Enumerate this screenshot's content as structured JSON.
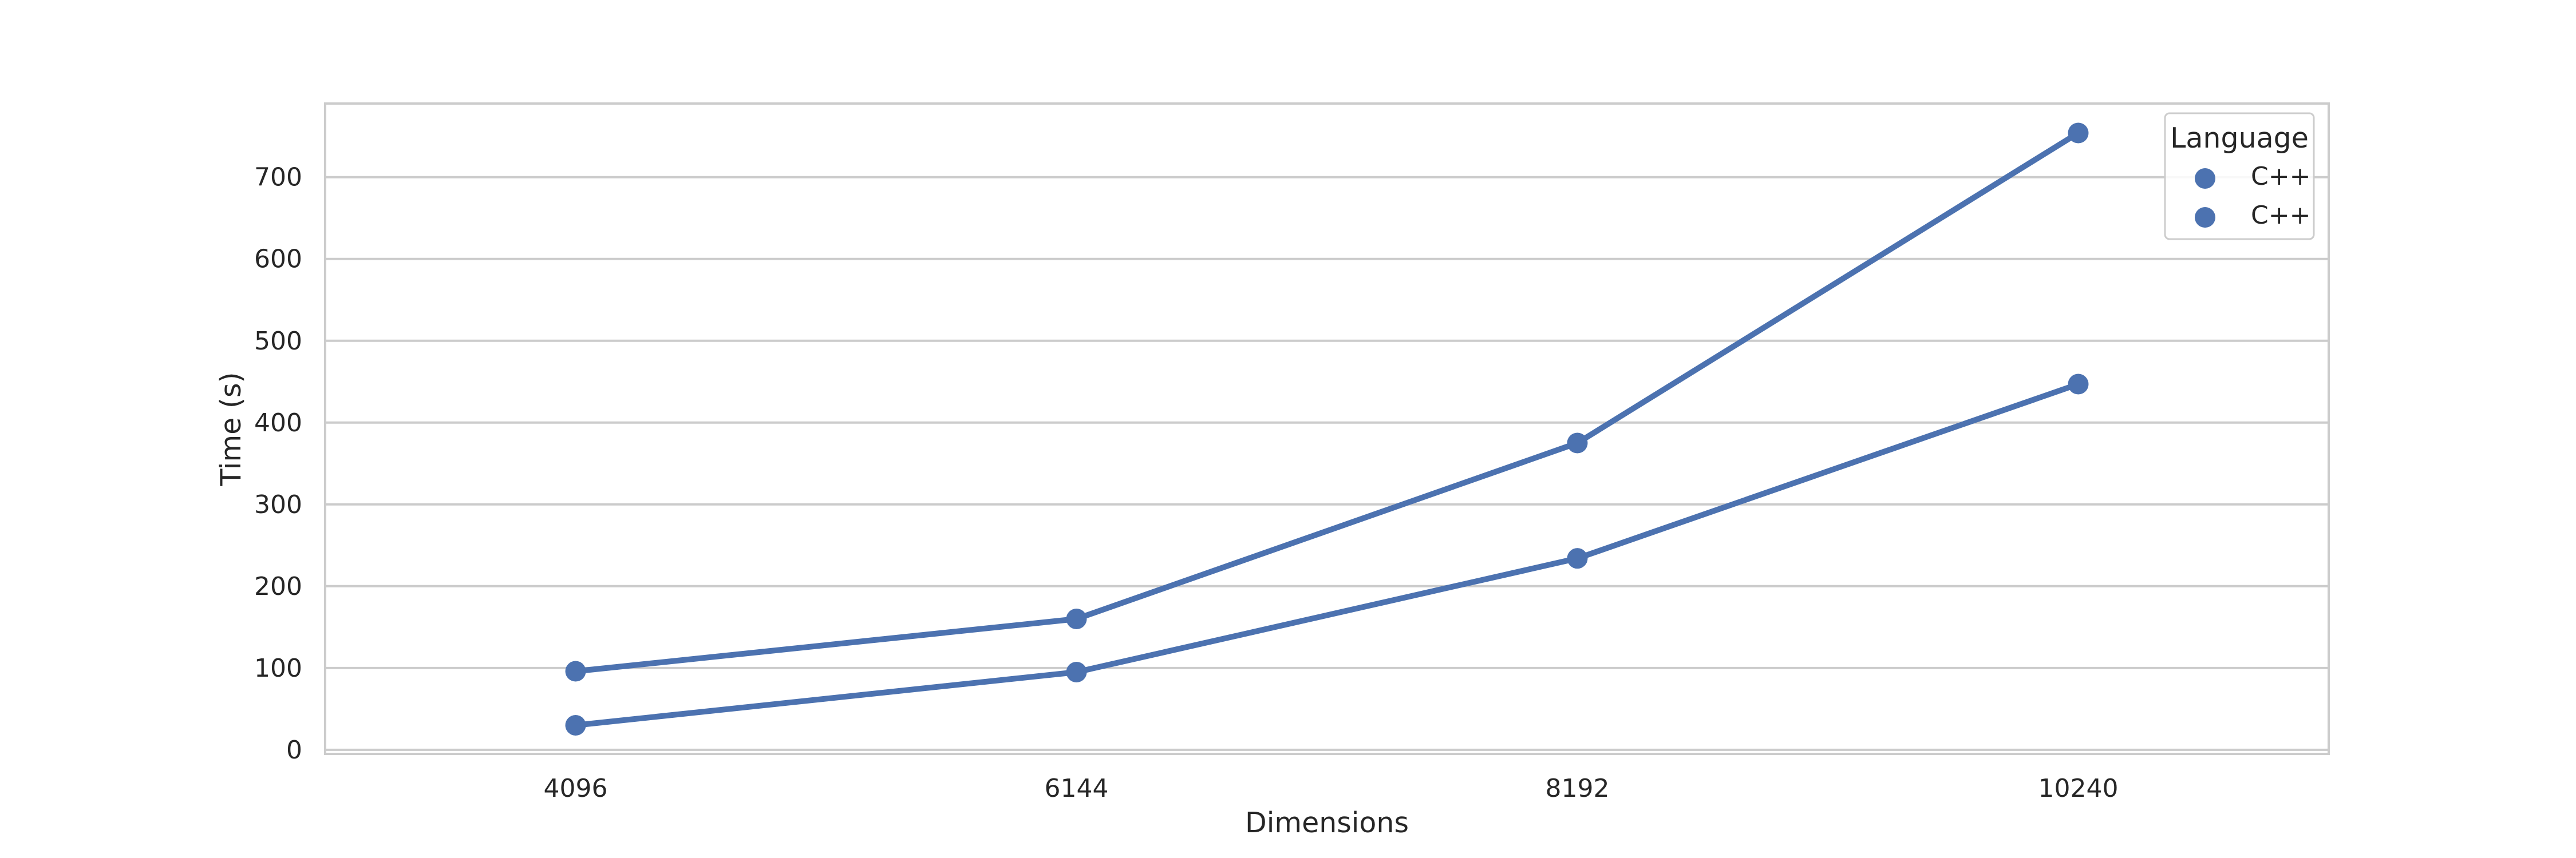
{
  "chart_data": {
    "type": "line",
    "xlabel": "Dimensions",
    "ylabel": "Time (s)",
    "categories": [
      "4096",
      "6144",
      "8192",
      "10240"
    ],
    "ylim": [
      -5,
      790
    ],
    "yticks": [
      0,
      100,
      200,
      300,
      400,
      500,
      600,
      700
    ],
    "grid": true,
    "markers": true,
    "series": [
      {
        "name": "C++",
        "values": [
          96,
          160,
          375,
          754
        ],
        "color": "#4c72b0"
      },
      {
        "name": "C++",
        "values": [
          30,
          95,
          234,
          447
        ],
        "color": "#4c72b0"
      }
    ],
    "legend": {
      "title": "Language",
      "placement": "top-right"
    }
  }
}
